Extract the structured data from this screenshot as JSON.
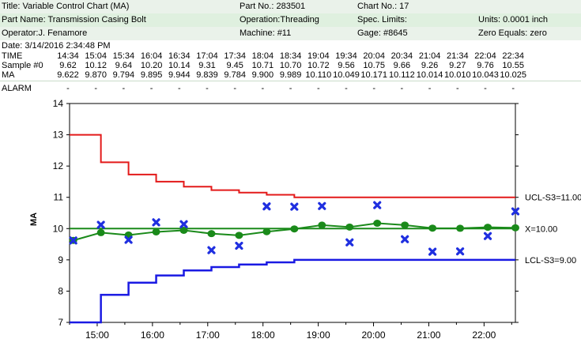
{
  "header": {
    "title": "Title: Variable Control Chart (MA)",
    "part_no": "Part No.: 283501",
    "chart_no": "Chart No.: 17",
    "part_name": "Part Name: Transmission Casing Bolt",
    "operation": "Operation:Threading",
    "spec_limits": "Spec. Limits:",
    "units": "Units: 0.0001 inch",
    "operator": "Operator:J. Fenamore",
    "machine": "Machine: #11",
    "gage": "Gage: #8645",
    "zero_equals": "Zero Equals: zero",
    "date": "Date: 3/14/2016 2:34:48 PM"
  },
  "table": {
    "time_label": "TIME",
    "sample_label": "Sample #0",
    "ma_label": "MA",
    "alarm_label": "ALARM",
    "times": [
      "14:34",
      "15:04",
      "15:34",
      "16:04",
      "16:34",
      "17:04",
      "17:34",
      "18:04",
      "18:34",
      "19:04",
      "19:34",
      "20:04",
      "20:34",
      "21:04",
      "21:34",
      "22:04",
      "22:34"
    ],
    "samples": [
      "9.62",
      "10.12",
      "9.64",
      "10.20",
      "10.14",
      "9.31",
      "9.45",
      "10.71",
      "10.70",
      "10.72",
      "9.56",
      "10.75",
      "9.66",
      "9.26",
      "9.27",
      "9.76",
      "10.55"
    ],
    "ma": [
      "9.622",
      "9.870",
      "9.794",
      "9.895",
      "9.944",
      "9.839",
      "9.784",
      "9.900",
      "9.989",
      "10.110",
      "10.049",
      "10.171",
      "10.112",
      "10.014",
      "10.010",
      "10.043",
      "10.025"
    ],
    "alarms": [
      "-",
      "-",
      "-",
      "-",
      "-",
      "-",
      "-",
      "-",
      "-",
      "-",
      "-",
      "-",
      "-",
      "-",
      "-",
      "-",
      "-"
    ]
  },
  "chart_data": {
    "type": "line",
    "ylabel": "MA",
    "ylim": [
      7,
      14
    ],
    "yticks": [
      7,
      8,
      9,
      10,
      11,
      12,
      13,
      14
    ],
    "xticks": [
      "15:00",
      "16:00",
      "17:00",
      "18:00",
      "19:00",
      "20:00",
      "21:00",
      "22:00"
    ],
    "x_hours": [
      14.567,
      15.067,
      15.567,
      16.067,
      16.567,
      17.067,
      17.567,
      18.067,
      18.567,
      19.067,
      19.567,
      20.067,
      20.567,
      21.067,
      21.567,
      22.067,
      22.567
    ],
    "xlim_hours": [
      14.5,
      22.567
    ],
    "series": [
      {
        "name": "MA",
        "values": [
          9.622,
          9.87,
          9.794,
          9.895,
          9.944,
          9.839,
          9.784,
          9.9,
          9.989,
          10.11,
          10.049,
          10.171,
          10.112,
          10.014,
          10.01,
          10.043,
          10.025
        ],
        "color": "#1a8a1a"
      },
      {
        "name": "Sample #0",
        "values": [
          9.62,
          10.12,
          9.64,
          10.2,
          10.14,
          9.31,
          9.45,
          10.71,
          10.7,
          10.72,
          9.56,
          10.75,
          9.66,
          9.26,
          9.27,
          9.76,
          10.55
        ],
        "color": "#1f2fe0"
      }
    ],
    "ucl_steps": [
      13.0,
      12.12,
      11.73,
      11.5,
      11.34,
      11.23,
      11.15,
      11.08,
      11.0
    ],
    "lcl_steps": [
      7.0,
      7.88,
      8.27,
      8.5,
      8.66,
      8.77,
      8.85,
      8.92,
      9.0
    ],
    "ucl_label": "UCL-S3=11.00",
    "center_label": "X=10.00",
    "lcl_label": "LCL-S3=9.00",
    "center": 10.0,
    "colors": {
      "ucl": "#e31a1a",
      "lcl": "#1a1ae3",
      "center": "#1a8a1a",
      "ma": "#1a8a1a",
      "sample": "#1f2fe0"
    }
  }
}
